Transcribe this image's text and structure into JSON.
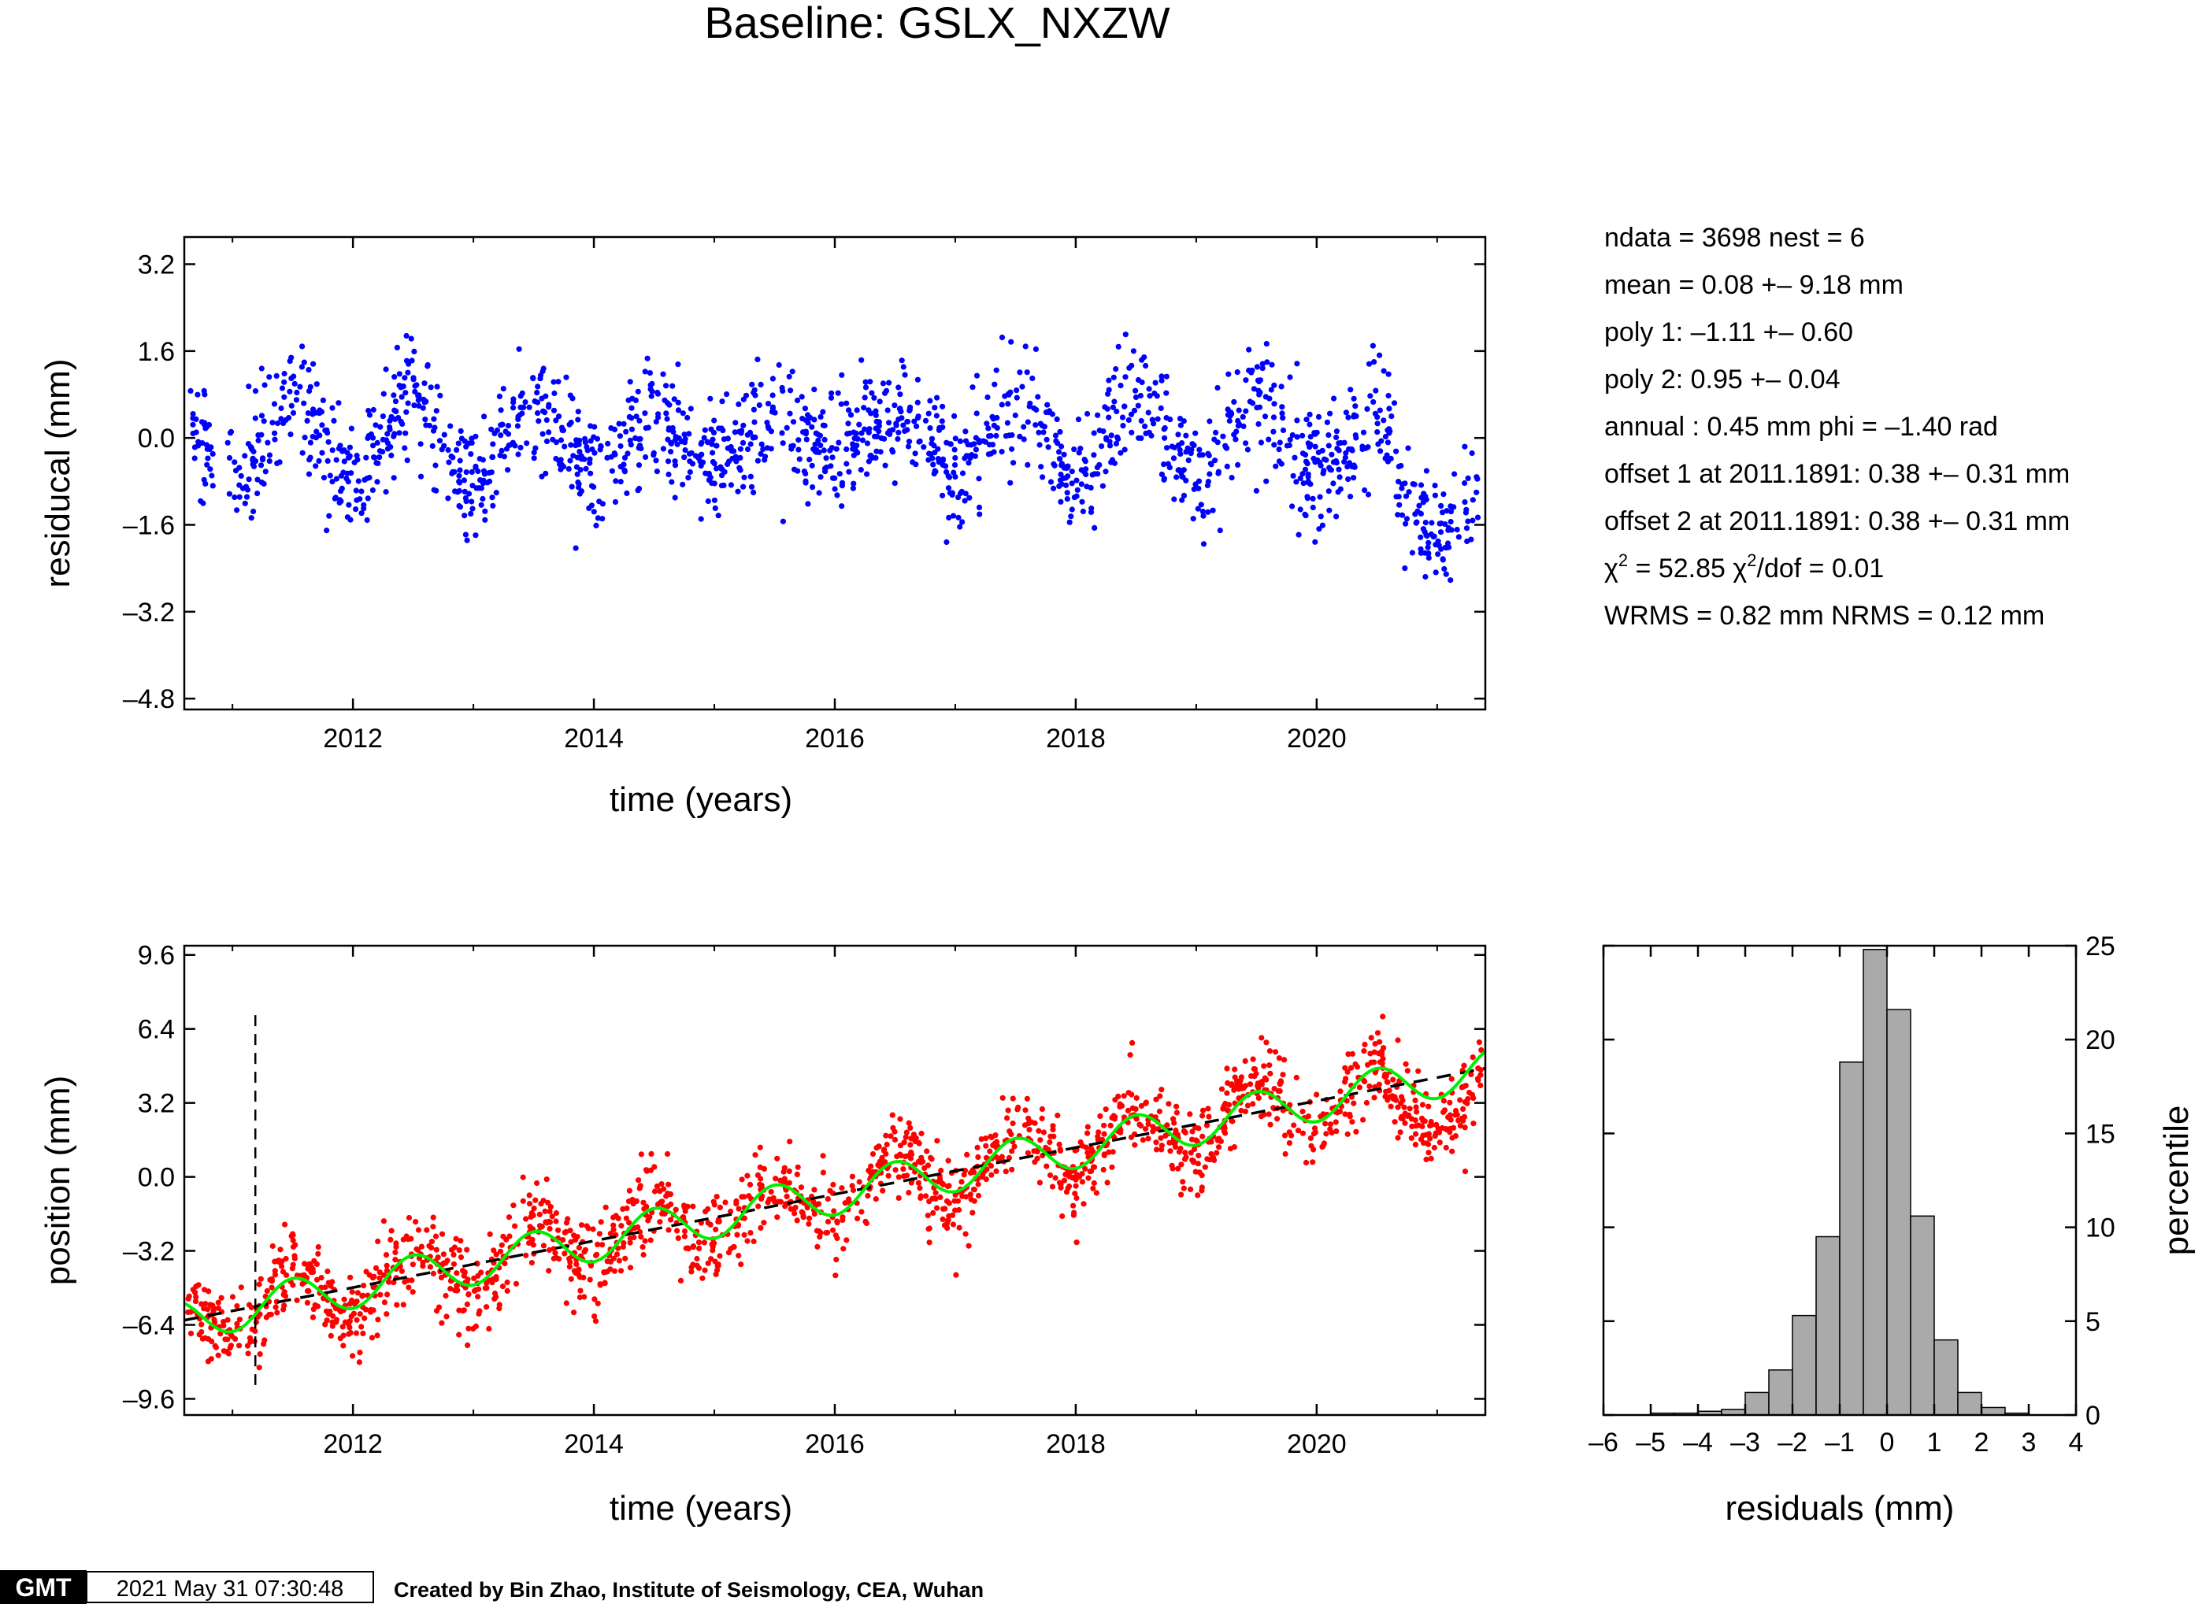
{
  "title": "Baseline: GSLX_NXZW",
  "stats": [
    "ndata = 3698  nest = 6",
    "mean = 0.08 +– 9.18 mm",
    "poly 1: –1.11 +– 0.60",
    "poly 2: 0.95 +– 0.04",
    "annual : 0.45 mm  phi = –1.40 rad",
    "offset 1 at 2011.1891: 0.38 +– 0.31 mm",
    "offset 2 at 2011.1891: 0.38 +– 0.31 mm",
    "WRMS = 0.82 mm  NRMS = 0.12 mm"
  ],
  "chi": {
    "chi_symbol": "χ",
    "sup": "2",
    "part1": " = 52.85  ",
    "part2": "/dof = 0.01"
  },
  "footer": {
    "logo": "GMT",
    "timestamp": "2021 May 31 07:30:48",
    "credit": "Created by Bin Zhao, Institute of Seismology, CEA, Wuhan"
  },
  "colors": {
    "residual_points": "#0000ff",
    "position_points": "#ff0000",
    "annual_fit": "#00ee00",
    "linear_fit": "#000000",
    "histogram_bars": "#aaaaaa"
  },
  "chart_data": [
    {
      "type": "scatter",
      "id": "residuals",
      "xlabel": "time (years)",
      "ylabel": "residucal (mm)",
      "xlim": [
        2010.6,
        2021.4
      ],
      "ylim": [
        -5.0,
        3.7
      ],
      "xticks": [
        2012,
        2014,
        2016,
        2018,
        2020
      ],
      "xtick_labels": [
        "2012",
        "2014",
        "2016",
        "2018",
        "2020"
      ],
      "yticks": [
        3.2,
        1.6,
        0.0,
        -1.6,
        -3.2,
        -4.8
      ],
      "ytick_labels": [
        "3.2",
        "1.6",
        "0.0",
        "–1.6",
        "–3.2",
        "–4.8"
      ],
      "annual_amplitude": 0.8,
      "noise_sigma": 0.55,
      "points_shown": 1700
    },
    {
      "type": "scatter",
      "id": "position",
      "xlabel": "time (years)",
      "ylabel": "position (mm)",
      "xlim": [
        2010.6,
        2021.4
      ],
      "ylim": [
        -10.3,
        10.0
      ],
      "xticks": [
        2012,
        2014,
        2016,
        2018,
        2020
      ],
      "xtick_labels": [
        "2012",
        "2014",
        "2016",
        "2018",
        "2020"
      ],
      "yticks": [
        9.6,
        6.4,
        3.2,
        0.0,
        -3.2,
        -6.4,
        -9.6
      ],
      "ytick_labels": [
        "9.6",
        "6.4",
        "3.2",
        "0.0",
        "–3.2",
        "–6.4",
        "–9.6"
      ],
      "linear_fit": {
        "x": [
          2010.6,
          2021.4
        ],
        "y": [
          -6.2,
          4.7
        ]
      },
      "annual_fit_amplitude": 0.45,
      "offset_epoch": 2011.19,
      "offset_marker_range": [
        -9.0,
        7.0
      ],
      "points_shown": 1700
    },
    {
      "type": "bar",
      "id": "histogram",
      "xlabel": "residuals (mm)",
      "ylabel": "percentile",
      "xlim": [
        -6,
        4
      ],
      "ylim": [
        0,
        25
      ],
      "xticks": [
        -6,
        -5,
        -4,
        -3,
        -2,
        -1,
        0,
        1,
        2,
        3,
        4
      ],
      "xtick_labels": [
        "–6",
        "–5",
        "–4",
        "–3",
        "–2",
        "–1",
        "0",
        "1",
        "2",
        "3",
        "4"
      ],
      "yticks": [
        0,
        5,
        10,
        15,
        20,
        25
      ],
      "ytick_labels": [
        "0",
        "5",
        "10",
        "15",
        "20",
        "25"
      ],
      "bin_width": 0.5,
      "bins": [
        {
          "x0": -5.0,
          "v": 0.1
        },
        {
          "x0": -4.5,
          "v": 0.1
        },
        {
          "x0": -4.0,
          "v": 0.2
        },
        {
          "x0": -3.5,
          "v": 0.3
        },
        {
          "x0": -3.0,
          "v": 1.2
        },
        {
          "x0": -2.5,
          "v": 2.4
        },
        {
          "x0": -2.0,
          "v": 5.3
        },
        {
          "x0": -1.5,
          "v": 9.5
        },
        {
          "x0": -1.0,
          "v": 18.8
        },
        {
          "x0": -0.5,
          "v": 24.8
        },
        {
          "x0": 0.0,
          "v": 21.6
        },
        {
          "x0": 0.5,
          "v": 10.6
        },
        {
          "x0": 1.0,
          "v": 4.0
        },
        {
          "x0": 1.5,
          "v": 1.2
        },
        {
          "x0": 2.0,
          "v": 0.4
        },
        {
          "x0": 2.5,
          "v": 0.1
        }
      ]
    }
  ]
}
